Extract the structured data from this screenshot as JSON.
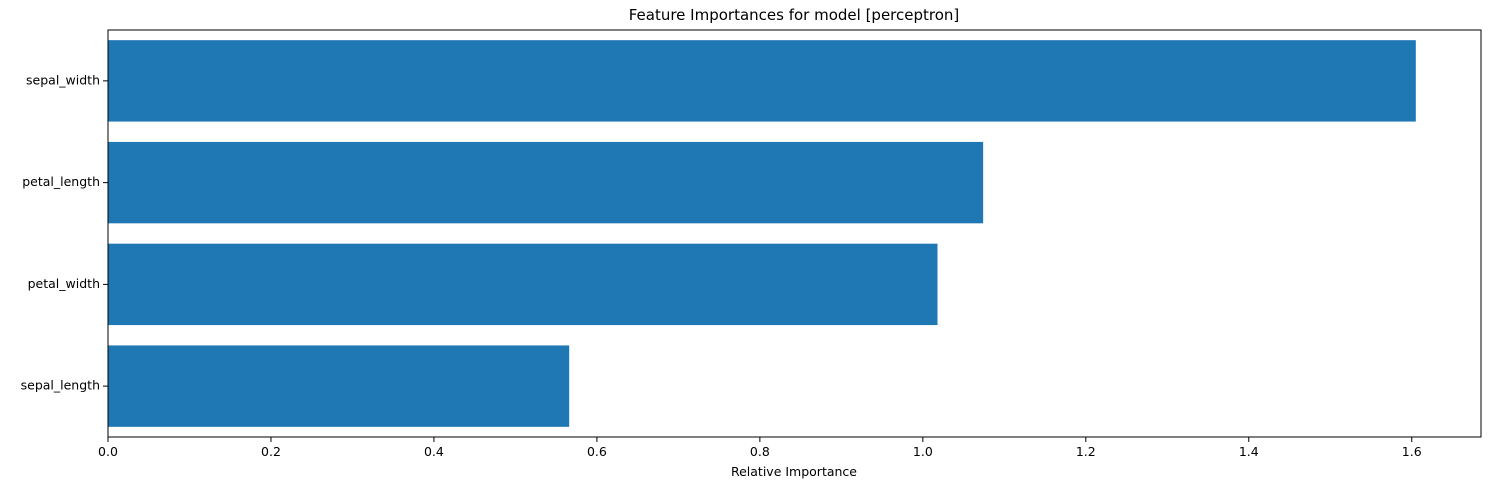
{
  "chart_data": {
    "type": "bar",
    "orientation": "horizontal",
    "title": "Feature Importances for model [perceptron]",
    "xlabel": "Relative Importance",
    "ylabel": "",
    "categories": [
      "sepal_width",
      "petal_length",
      "petal_width",
      "sepal_length"
    ],
    "values": [
      1.605,
      1.074,
      1.018,
      0.566
    ],
    "xlim": [
      0,
      1.685
    ],
    "xticks": [
      0.0,
      0.2,
      0.4,
      0.6,
      0.8,
      1.0,
      1.2,
      1.4,
      1.6
    ],
    "xtick_labels": [
      "0.0",
      "0.2",
      "0.4",
      "0.6",
      "0.8",
      "1.0",
      "1.2",
      "1.4",
      "1.6"
    ],
    "bar_color": "#1f77b4",
    "grid": false,
    "legend": "none"
  }
}
